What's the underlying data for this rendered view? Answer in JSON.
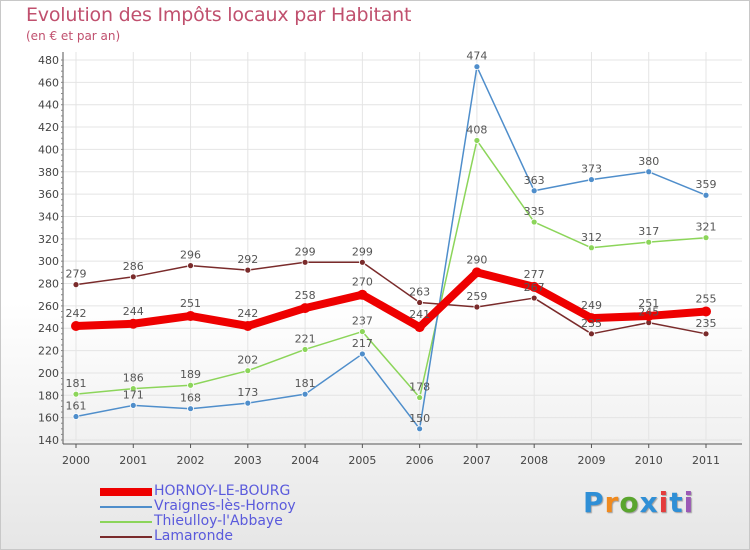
{
  "chart_data": {
    "type": "line",
    "title": "Evolution des Impôts locaux par Habitant",
    "subtitle": "(en € et par an)",
    "x": [
      "2000",
      "2001",
      "2002",
      "2003",
      "2004",
      "2005",
      "2006",
      "2007",
      "2008",
      "2009",
      "2010",
      "2011"
    ],
    "ylim": [
      140,
      480
    ],
    "yticks": [
      140,
      160,
      180,
      200,
      220,
      240,
      260,
      280,
      300,
      320,
      340,
      360,
      380,
      400,
      420,
      440,
      460,
      480
    ],
    "series": [
      {
        "name": "HORNOY-LE-BOURG",
        "color": "#ee0000",
        "values": [
          242,
          244,
          251,
          242,
          258,
          270,
          241,
          290,
          277,
          249,
          251,
          255
        ]
      },
      {
        "name": "Vraignes-lès-Hornoy",
        "color": "#4f8ecb",
        "values": [
          161,
          171,
          168,
          173,
          181,
          217,
          150,
          474,
          363,
          373,
          380,
          359
        ]
      },
      {
        "name": "Thieulloy-l'Abbaye",
        "color": "#8cd55a",
        "values": [
          181,
          186,
          189,
          202,
          221,
          237,
          178,
          408,
          335,
          312,
          317,
          321
        ]
      },
      {
        "name": "Lamaronde",
        "color": "#7a2b2b",
        "values": [
          279,
          286,
          296,
          292,
          299,
          299,
          263,
          259,
          267,
          235,
          245,
          235
        ]
      }
    ]
  },
  "logo": {
    "text": "Proxiti",
    "colors": [
      "#2f8fd6",
      "#f08a1e",
      "#5aa52e",
      "#2f8fd6",
      "#e43c3c",
      "#2f8fd6",
      "#9b59b6"
    ]
  }
}
